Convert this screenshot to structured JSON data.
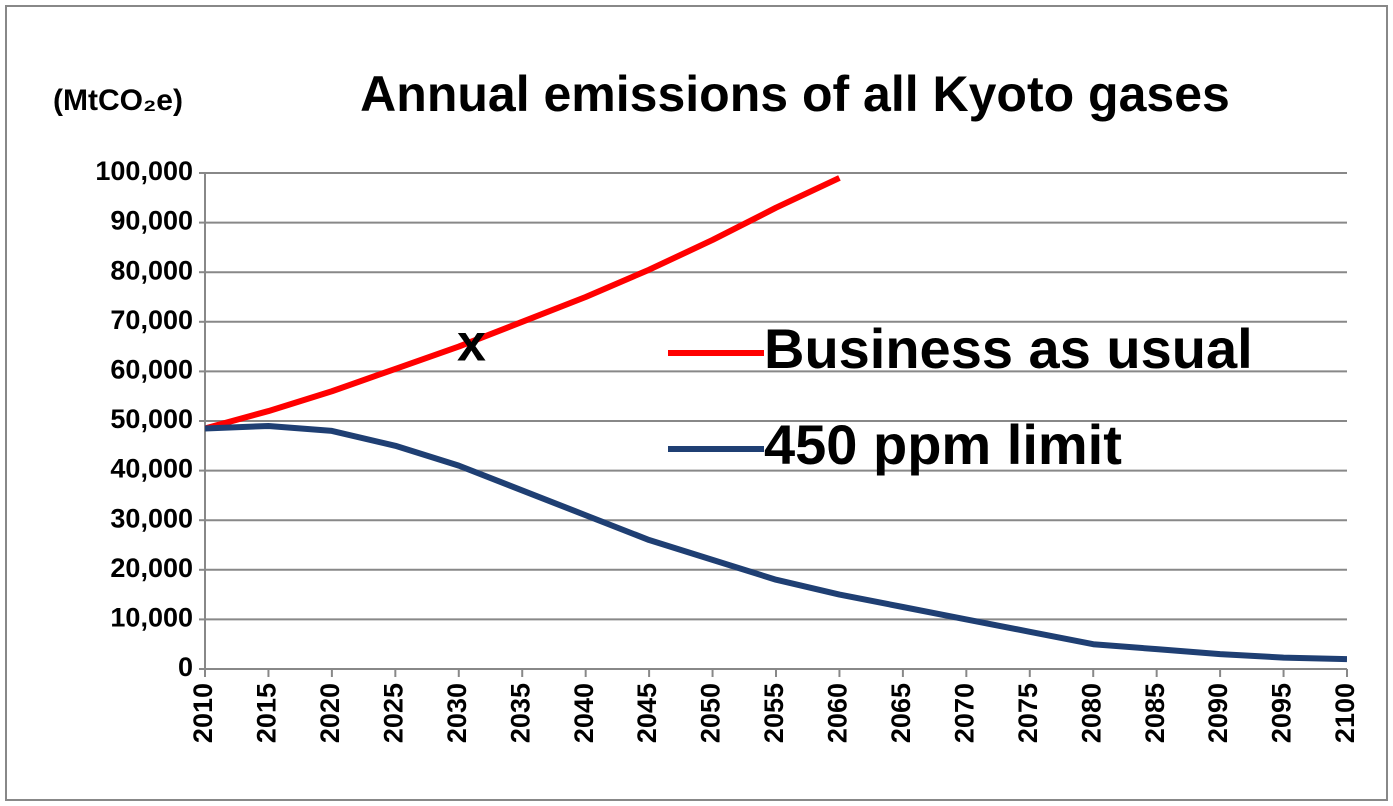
{
  "chart_data": {
    "type": "line",
    "title": "Annual emissions of all Kyoto gases",
    "y_axis_label": "(MtCO₂e)",
    "annotations": [
      {
        "text": "x",
        "x": 2031,
        "y": 65000
      }
    ],
    "x": [
      2010,
      2015,
      2020,
      2025,
      2030,
      2035,
      2040,
      2045,
      2050,
      2055,
      2060,
      2065,
      2070,
      2075,
      2080,
      2085,
      2090,
      2095,
      2100
    ],
    "series": [
      {
        "name": "Business as usual",
        "color": "#ff0000",
        "values": [
          48500,
          52000,
          56000,
          60500,
          65000,
          70000,
          75000,
          80500,
          86500,
          93000,
          99000,
          null,
          null,
          null,
          null,
          null,
          null,
          null,
          null
        ]
      },
      {
        "name": "450 ppm limit",
        "color": "#1f3f73",
        "values": [
          48500,
          49000,
          48000,
          45000,
          41000,
          36000,
          31000,
          26000,
          22000,
          18000,
          15000,
          12500,
          10000,
          7500,
          5000,
          4000,
          3000,
          2300,
          2000
        ]
      }
    ],
    "xlim": [
      2010,
      2100
    ],
    "xticks": [
      2010,
      2015,
      2020,
      2025,
      2030,
      2035,
      2040,
      2045,
      2050,
      2055,
      2060,
      2065,
      2070,
      2075,
      2080,
      2085,
      2090,
      2095,
      2100
    ],
    "ylim": [
      0,
      100000
    ],
    "yticks": [
      0,
      {
        "value": 10000,
        "label": "10,000"
      },
      {
        "value": 20000,
        "label": "20,000"
      },
      {
        "value": 30000,
        "label": "30,000"
      },
      {
        "value": 40000,
        "label": "40,000"
      },
      {
        "value": 50000,
        "label": "50,000"
      },
      {
        "value": 60000,
        "label": "60,000"
      },
      {
        "value": 70000,
        "label": "70,000"
      },
      {
        "value": 80000,
        "label": "80,000"
      },
      {
        "value": 90000,
        "label": "90,000"
      },
      {
        "value": 100000,
        "label": "100,000"
      }
    ],
    "grid": true,
    "legend": "right"
  }
}
